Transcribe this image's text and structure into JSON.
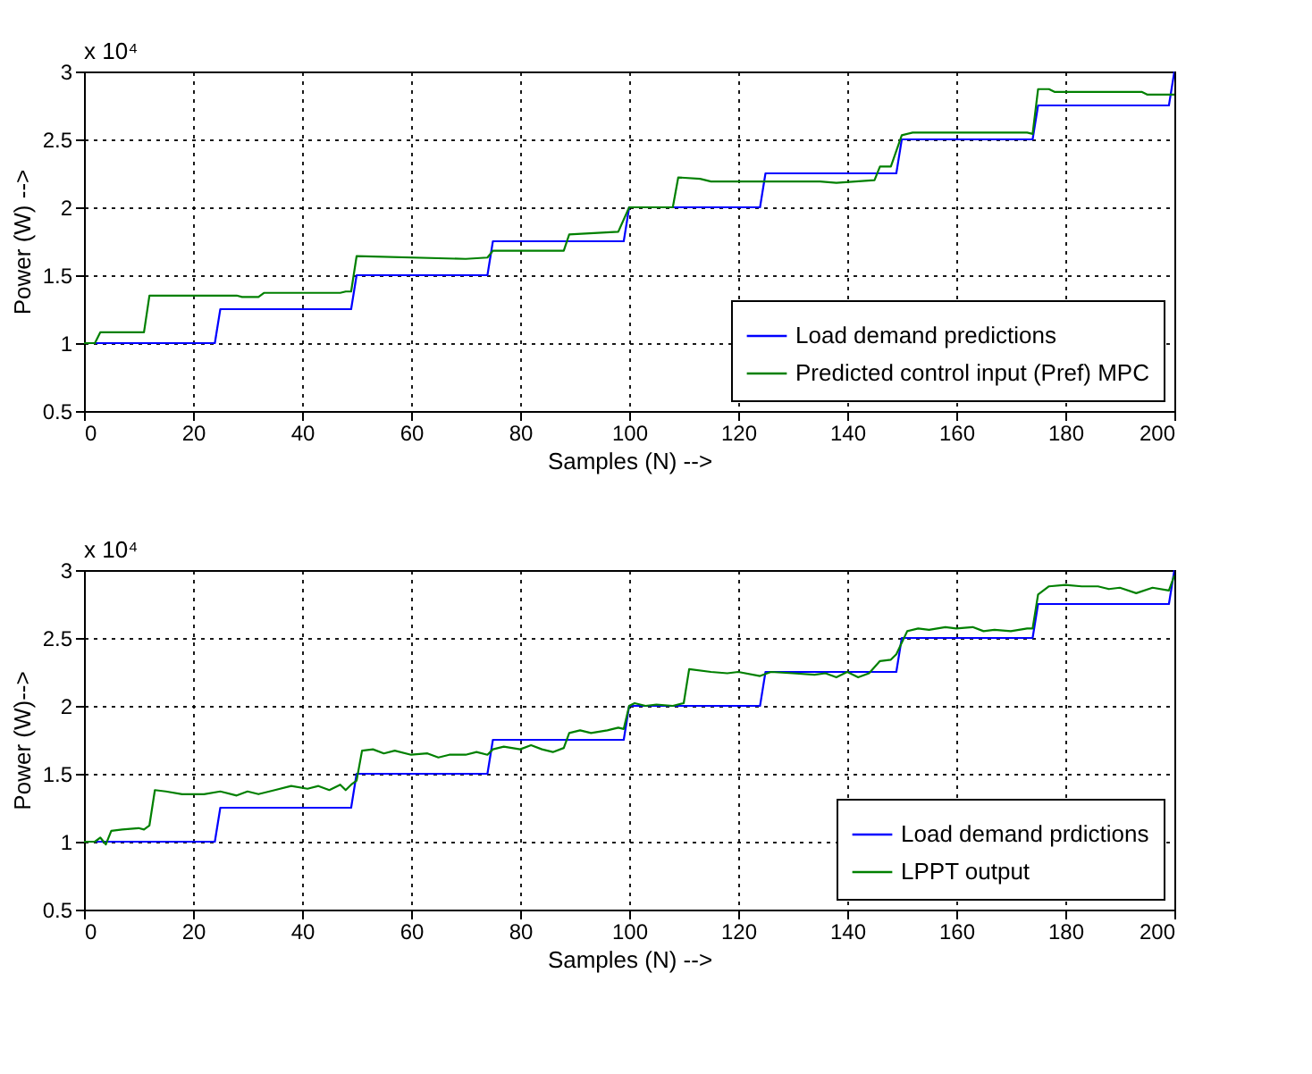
{
  "chart_data": [
    {
      "type": "line",
      "xlabel": "Samples (N) -->",
      "ylabel": "Power (W) -->",
      "annotations": [
        "x 10⁴"
      ],
      "xlim": [
        0,
        200
      ],
      "xticks": [
        0,
        20,
        40,
        60,
        80,
        100,
        120,
        140,
        160,
        180,
        200
      ],
      "ylim": [
        0.5,
        3
      ],
      "yticks": [
        0.5,
        1,
        1.5,
        2,
        2.5,
        3
      ],
      "grid": true,
      "legend": "bottom right",
      "series": [
        {
          "name": "Load demand predictions",
          "color": "#0000ff",
          "x": [
            0,
            24,
            25,
            49,
            50,
            74,
            75,
            99,
            100,
            124,
            125,
            149,
            150,
            174,
            175,
            199,
            200
          ],
          "values": [
            1,
            1,
            1.25,
            1.25,
            1.5,
            1.5,
            1.75,
            1.75,
            2,
            2,
            2.25,
            2.25,
            2.5,
            2.5,
            2.75,
            2.75,
            3
          ]
        },
        {
          "name": "Predicted control input (Pref) MPC",
          "color": "#008000",
          "x": [
            0,
            2,
            3,
            11,
            12,
            28,
            29,
            32,
            33,
            47,
            48,
            49,
            50,
            70,
            74,
            75,
            88,
            89,
            98,
            100,
            108,
            109,
            113,
            115,
            135,
            138,
            145,
            146,
            148,
            150,
            152,
            173,
            174,
            175,
            177,
            178,
            194,
            195,
            200
          ],
          "values": [
            1,
            1,
            1.08,
            1.08,
            1.35,
            1.35,
            1.34,
            1.34,
            1.37,
            1.37,
            1.38,
            1.38,
            1.64,
            1.62,
            1.63,
            1.68,
            1.68,
            1.8,
            1.82,
            2,
            2,
            2.22,
            2.21,
            2.19,
            2.19,
            2.18,
            2.2,
            2.3,
            2.3,
            2.53,
            2.55,
            2.55,
            2.54,
            2.87,
            2.87,
            2.85,
            2.85,
            2.83,
            2.83
          ]
        }
      ]
    },
    {
      "type": "line",
      "xlabel": "Samples (N) -->",
      "ylabel": "Power (W)-->",
      "annotations": [
        "x 10⁴"
      ],
      "xlim": [
        0,
        200
      ],
      "xticks": [
        0,
        20,
        40,
        60,
        80,
        100,
        120,
        140,
        160,
        180,
        200
      ],
      "ylim": [
        0.5,
        3
      ],
      "yticks": [
        0.5,
        1,
        1.5,
        2,
        2.5,
        3
      ],
      "grid": true,
      "legend": "bottom right",
      "series": [
        {
          "name": "Load demand prdictions",
          "color": "#0000ff",
          "x": [
            0,
            24,
            25,
            49,
            50,
            74,
            75,
            99,
            100,
            124,
            125,
            149,
            150,
            174,
            175,
            199,
            200
          ],
          "values": [
            1,
            1,
            1.25,
            1.25,
            1.5,
            1.5,
            1.75,
            1.75,
            2,
            2,
            2.25,
            2.25,
            2.5,
            2.5,
            2.75,
            2.75,
            3
          ]
        },
        {
          "name": "LPPT output",
          "color": "#008000",
          "x": [
            0,
            2,
            3,
            4,
            5,
            7,
            10,
            11,
            12,
            13,
            15,
            18,
            22,
            25,
            28,
            30,
            32,
            35,
            38,
            41,
            43,
            45,
            47,
            48,
            49,
            50,
            51,
            53,
            55,
            57,
            60,
            63,
            65,
            67,
            70,
            72,
            74,
            75,
            77,
            80,
            82,
            84,
            86,
            88,
            89,
            91,
            93,
            96,
            98,
            99,
            100,
            101,
            103,
            105,
            108,
            110,
            111,
            115,
            118,
            120,
            124,
            126,
            130,
            134,
            136,
            138,
            140,
            142,
            144,
            146,
            148,
            149,
            151,
            153,
            155,
            158,
            160,
            163,
            165,
            167,
            170,
            173,
            174,
            175,
            177,
            180,
            183,
            186,
            188,
            190,
            193,
            196,
            199,
            200
          ],
          "values": [
            1,
            1,
            1.03,
            0.98,
            1.08,
            1.09,
            1.1,
            1.09,
            1.12,
            1.38,
            1.37,
            1.35,
            1.35,
            1.37,
            1.34,
            1.37,
            1.35,
            1.38,
            1.41,
            1.39,
            1.41,
            1.38,
            1.42,
            1.38,
            1.42,
            1.45,
            1.67,
            1.68,
            1.65,
            1.67,
            1.64,
            1.65,
            1.62,
            1.64,
            1.64,
            1.66,
            1.64,
            1.68,
            1.7,
            1.68,
            1.71,
            1.68,
            1.66,
            1.69,
            1.8,
            1.82,
            1.8,
            1.82,
            1.84,
            1.83,
            2,
            2.02,
            2,
            2.01,
            2,
            2.02,
            2.27,
            2.25,
            2.24,
            2.25,
            2.22,
            2.25,
            2.24,
            2.23,
            2.24,
            2.21,
            2.25,
            2.21,
            2.24,
            2.33,
            2.34,
            2.38,
            2.55,
            2.57,
            2.56,
            2.58,
            2.57,
            2.58,
            2.55,
            2.56,
            2.55,
            2.57,
            2.57,
            2.82,
            2.88,
            2.89,
            2.88,
            2.88,
            2.86,
            2.87,
            2.83,
            2.87,
            2.85,
            2.96
          ]
        }
      ]
    }
  ]
}
